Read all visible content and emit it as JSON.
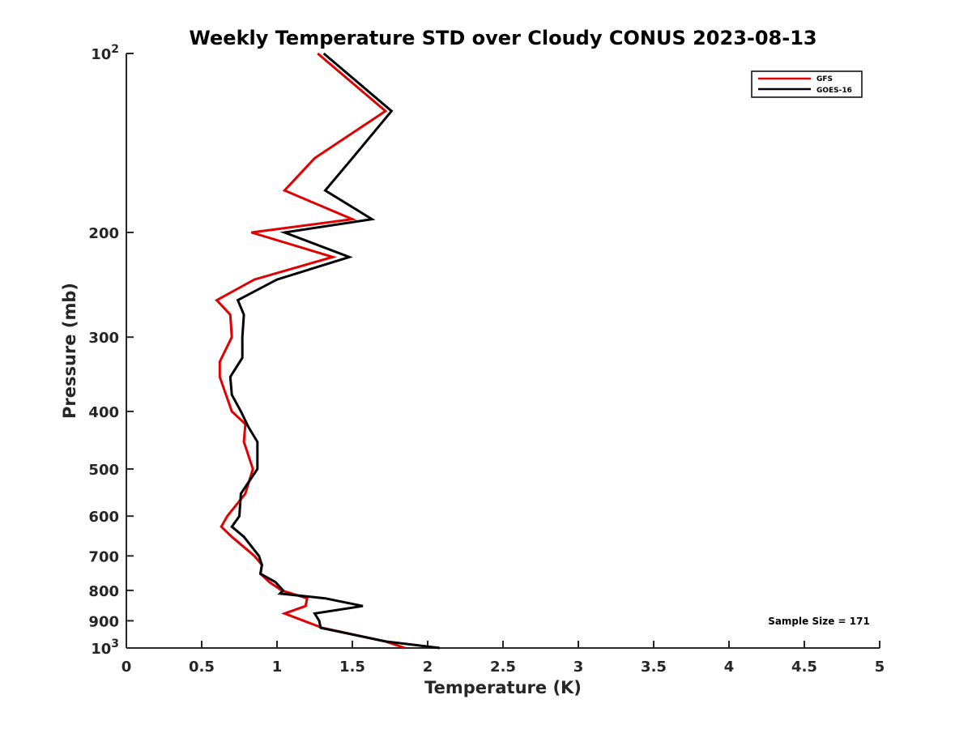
{
  "chart_data": {
    "type": "line",
    "title": "Weekly Temperature STD over Cloudy CONUS 2023-08-13",
    "xlabel": "Temperature (K)",
    "ylabel": "Pressure (mb)",
    "xlim": [
      0,
      5
    ],
    "ylim": [
      100,
      1000
    ],
    "y_scale": "log",
    "y_reversed": true,
    "x_ticks": [
      {
        "value": 0,
        "label": "0"
      },
      {
        "value": 0.5,
        "label": "0.5"
      },
      {
        "value": 1,
        "label": "1"
      },
      {
        "value": 1.5,
        "label": "1.5"
      },
      {
        "value": 2,
        "label": "2"
      },
      {
        "value": 2.5,
        "label": "2.5"
      },
      {
        "value": 3,
        "label": "3"
      },
      {
        "value": 3.5,
        "label": "3.5"
      },
      {
        "value": 4,
        "label": "4"
      },
      {
        "value": 4.5,
        "label": "4.5"
      },
      {
        "value": 5,
        "label": "5"
      }
    ],
    "y_ticks": [
      {
        "value": 100,
        "base": "10",
        "exp": "2"
      },
      {
        "value": 200,
        "label": "200"
      },
      {
        "value": 300,
        "label": "300"
      },
      {
        "value": 400,
        "label": "400"
      },
      {
        "value": 500,
        "label": "500"
      },
      {
        "value": 600,
        "label": "600"
      },
      {
        "value": 700,
        "label": "700"
      },
      {
        "value": 800,
        "label": "800"
      },
      {
        "value": 900,
        "label": "900"
      },
      {
        "value": 1000,
        "base": "10",
        "exp": "3"
      }
    ],
    "grid": false,
    "legend_position": "top-right",
    "series": [
      {
        "name": "GFS",
        "color": "#e00000",
        "points": [
          [
            1.27,
            100
          ],
          [
            1.72,
            125
          ],
          [
            1.25,
            150
          ],
          [
            1.05,
            170
          ],
          [
            1.5,
            190
          ],
          [
            0.83,
            200
          ],
          [
            1.37,
            220
          ],
          [
            0.85,
            240
          ],
          [
            0.6,
            260
          ],
          [
            0.69,
            275
          ],
          [
            0.7,
            300
          ],
          [
            0.62,
            330
          ],
          [
            0.62,
            350
          ],
          [
            0.7,
            400
          ],
          [
            0.79,
            420
          ],
          [
            0.78,
            450
          ],
          [
            0.84,
            500
          ],
          [
            0.79,
            550
          ],
          [
            0.67,
            600
          ],
          [
            0.63,
            625
          ],
          [
            0.7,
            650
          ],
          [
            0.85,
            700
          ],
          [
            0.9,
            725
          ],
          [
            0.89,
            750
          ],
          [
            0.95,
            775
          ],
          [
            1.03,
            800
          ],
          [
            1.2,
            825
          ],
          [
            1.19,
            850
          ],
          [
            1.05,
            875
          ],
          [
            1.3,
            925
          ],
          [
            1.72,
            975
          ],
          [
            1.85,
            1000
          ]
        ]
      },
      {
        "name": "GOES-16",
        "color": "#000000",
        "points": [
          [
            1.31,
            100
          ],
          [
            1.76,
            125
          ],
          [
            1.5,
            150
          ],
          [
            1.32,
            170
          ],
          [
            1.63,
            190
          ],
          [
            1.05,
            200
          ],
          [
            1.48,
            220
          ],
          [
            1.0,
            240
          ],
          [
            0.74,
            260
          ],
          [
            0.78,
            275
          ],
          [
            0.77,
            300
          ],
          [
            0.77,
            325
          ],
          [
            0.69,
            350
          ],
          [
            0.7,
            375
          ],
          [
            0.76,
            400
          ],
          [
            0.81,
            425
          ],
          [
            0.87,
            450
          ],
          [
            0.87,
            500
          ],
          [
            0.76,
            550
          ],
          [
            0.75,
            600
          ],
          [
            0.7,
            625
          ],
          [
            0.78,
            650
          ],
          [
            0.88,
            700
          ],
          [
            0.9,
            725
          ],
          [
            0.89,
            750
          ],
          [
            0.99,
            775
          ],
          [
            1.04,
            800
          ],
          [
            1.02,
            810
          ],
          [
            1.32,
            825
          ],
          [
            1.57,
            850
          ],
          [
            1.25,
            875
          ],
          [
            1.28,
            900
          ],
          [
            1.29,
            925
          ],
          [
            1.72,
            975
          ],
          [
            2.08,
            1000
          ]
        ]
      }
    ],
    "annotation": "Sample Size = 171"
  }
}
